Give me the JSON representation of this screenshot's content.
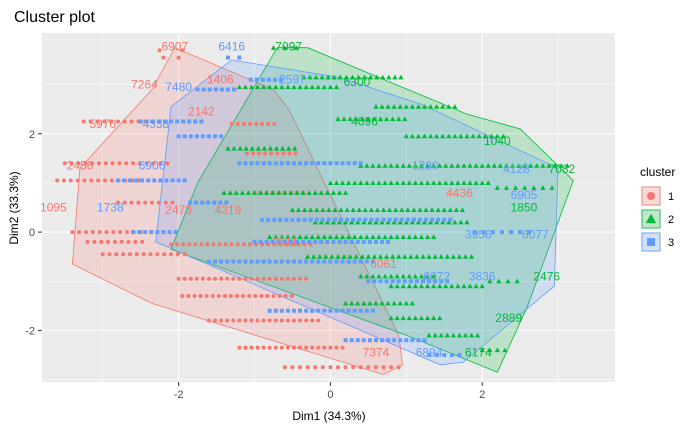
{
  "chart_data": {
    "type": "scatter",
    "title": "Cluster plot",
    "xlabel": "Dim1 (34.3%)",
    "ylabel": "Dim2 (33.3%)",
    "xlim": [
      -3.8,
      3.75
    ],
    "ylim": [
      -3.05,
      4.05
    ],
    "x_ticks": [
      -2,
      0,
      2
    ],
    "y_ticks": [
      -2,
      0,
      2
    ],
    "grid": true,
    "legend": {
      "title": "cluster",
      "position": "right",
      "entries": [
        "1",
        "2",
        "3"
      ]
    },
    "series": [
      {
        "name": "1",
        "color": "#F8766D",
        "marker": "circle",
        "hull": [
          [
            -3.3,
            1.3
          ],
          [
            -2.35,
            2.9
          ],
          [
            -2.05,
            3.75
          ],
          [
            -0.75,
            2.9
          ],
          [
            -0.55,
            2.5
          ],
          [
            0.9,
            -2.1
          ],
          [
            0.95,
            -2.7
          ],
          [
            0.7,
            -2.9
          ],
          [
            -2.35,
            -1.45
          ],
          [
            -3.4,
            -0.65
          ]
        ],
        "point_rows": [
          {
            "y": 3.7,
            "x0": -2.25,
            "x1": -1.85,
            "step": 0.3
          },
          {
            "y": 3.55,
            "x0": -2.2,
            "x1": -1.95,
            "step": 0.2
          },
          {
            "y": 2.25,
            "x0": -3.25,
            "x1": -2.3,
            "step": 0.09
          },
          {
            "y": 1.4,
            "x0": -3.5,
            "x1": -2.1,
            "step": 0.09
          },
          {
            "y": 1.05,
            "x0": -3.6,
            "x1": -2.5,
            "step": 0.09
          },
          {
            "y": 0.6,
            "x0": -2.8,
            "x1": -2.0,
            "step": 0.09
          },
          {
            "y": 0.0,
            "x0": -3.4,
            "x1": -2.5,
            "step": 0.09
          },
          {
            "y": -0.2,
            "x0": -3.2,
            "x1": -2.4,
            "step": 0.09
          },
          {
            "y": -0.25,
            "x0": -2.1,
            "x1": -0.2,
            "step": 0.08
          },
          {
            "y": -0.45,
            "x0": -3.0,
            "x1": -1.9,
            "step": 0.09
          },
          {
            "y": -0.95,
            "x0": -2.0,
            "x1": -0.3,
            "step": 0.08
          },
          {
            "y": -1.3,
            "x0": -1.95,
            "x1": -0.5,
            "step": 0.08
          },
          {
            "y": -1.8,
            "x0": -1.6,
            "x1": -0.1,
            "step": 0.08
          },
          {
            "y": -2.35,
            "x0": -1.2,
            "x1": 0.2,
            "step": 0.08
          },
          {
            "y": 2.2,
            "x0": -1.3,
            "x1": -0.7,
            "step": 0.08
          },
          {
            "y": 1.6,
            "x0": -1.1,
            "x1": -0.4,
            "step": 0.08
          },
          {
            "y": 0.8,
            "x0": -1.0,
            "x1": -0.3,
            "step": 0.08
          },
          {
            "y": -2.75,
            "x0": -0.6,
            "x1": 0.9,
            "step": 0.1
          }
        ]
      },
      {
        "name": "2",
        "color": "#00BA38",
        "marker": "triangle",
        "hull": [
          [
            -1.75,
            1.0
          ],
          [
            -0.7,
            3.75
          ],
          [
            -0.3,
            3.75
          ],
          [
            1.8,
            2.4
          ],
          [
            2.5,
            2.1
          ],
          [
            3.2,
            1.05
          ],
          [
            2.6,
            -1.5
          ],
          [
            2.2,
            -2.85
          ],
          [
            1.0,
            -2.1
          ],
          [
            -2.1,
            -0.35
          ]
        ],
        "point_rows": [
          {
            "y": 3.75,
            "x0": -0.75,
            "x1": -0.45,
            "step": 0.15
          },
          {
            "y": 3.15,
            "x0": -0.35,
            "x1": 0.95,
            "step": 0.08
          },
          {
            "y": 2.95,
            "x0": -1.2,
            "x1": 0.1,
            "step": 0.08
          },
          {
            "y": 2.55,
            "x0": 0.6,
            "x1": 1.7,
            "step": 0.08
          },
          {
            "y": 2.3,
            "x0": 0.1,
            "x1": 1.0,
            "step": 0.08
          },
          {
            "y": 1.95,
            "x0": 1.0,
            "x1": 2.3,
            "step": 0.08
          },
          {
            "y": 1.7,
            "x0": -1.35,
            "x1": -0.4,
            "step": 0.08
          },
          {
            "y": 1.35,
            "x0": 0.4,
            "x1": 3.15,
            "step": 0.08
          },
          {
            "y": 1.0,
            "x0": 0.0,
            "x1": 2.1,
            "step": 0.08
          },
          {
            "y": 0.8,
            "x0": -1.4,
            "x1": 0.2,
            "step": 0.08
          },
          {
            "y": 0.45,
            "x0": -0.5,
            "x1": 1.8,
            "step": 0.08
          },
          {
            "y": 0.2,
            "x0": -0.2,
            "x1": 1.85,
            "step": 0.08
          },
          {
            "y": -0.1,
            "x0": -0.8,
            "x1": 1.4,
            "step": 0.08
          },
          {
            "y": -0.5,
            "x0": -0.3,
            "x1": 1.9,
            "step": 0.08
          },
          {
            "y": -0.9,
            "x0": 0.4,
            "x1": 1.4,
            "step": 0.08
          },
          {
            "y": -1.1,
            "x0": 0.8,
            "x1": 2.0,
            "step": 0.08
          },
          {
            "y": -1.45,
            "x0": 0.2,
            "x1": 1.1,
            "step": 0.08
          },
          {
            "y": -1.75,
            "x0": 0.8,
            "x1": 1.5,
            "step": 0.08
          },
          {
            "y": -2.1,
            "x0": 1.3,
            "x1": 2.0,
            "step": 0.08
          },
          {
            "y": 0.9,
            "x0": 2.2,
            "x1": 3.0,
            "step": 0.12
          },
          {
            "y": -1.0,
            "x0": 2.1,
            "x1": 2.5,
            "step": 0.12
          },
          {
            "y": -2.4,
            "x0": 2.0,
            "x1": 2.3,
            "step": 0.1
          }
        ]
      },
      {
        "name": "3",
        "color": "#619CFF",
        "marker": "square",
        "hull": [
          [
            -2.1,
            2.55
          ],
          [
            -1.3,
            3.5
          ],
          [
            0.1,
            3.15
          ],
          [
            1.2,
            2.6
          ],
          [
            3.0,
            1.3
          ],
          [
            2.95,
            -1.1
          ],
          [
            1.75,
            -2.65
          ],
          [
            1.45,
            -2.7
          ],
          [
            -2.3,
            -0.2
          ]
        ],
        "point_rows": [
          {
            "y": 3.55,
            "x0": -1.35,
            "x1": -1.2,
            "step": 0.15
          },
          {
            "y": 3.1,
            "x0": -1.05,
            "x1": -0.6,
            "step": 0.08
          },
          {
            "y": 2.9,
            "x0": -1.75,
            "x1": -1.2,
            "step": 0.08
          },
          {
            "y": 2.25,
            "x0": -2.5,
            "x1": -1.7,
            "step": 0.08
          },
          {
            "y": 1.95,
            "x0": -2.0,
            "x1": -1.4,
            "step": 0.08
          },
          {
            "y": 1.4,
            "x0": -1.2,
            "x1": 0.4,
            "step": 0.08
          },
          {
            "y": 1.05,
            "x0": -2.8,
            "x1": -1.9,
            "step": 0.08
          },
          {
            "y": 0.6,
            "x0": -1.85,
            "x1": -1.3,
            "step": 0.08
          },
          {
            "y": 0.25,
            "x0": -0.9,
            "x1": 1.6,
            "step": 0.08
          },
          {
            "y": 0.0,
            "x0": -2.6,
            "x1": -2.0,
            "step": 0.08
          },
          {
            "y": -0.2,
            "x0": -1.0,
            "x1": 0.8,
            "step": 0.08
          },
          {
            "y": -0.6,
            "x0": -1.6,
            "x1": 0.6,
            "step": 0.08
          },
          {
            "y": -1.0,
            "x0": 0.5,
            "x1": 1.6,
            "step": 0.08
          },
          {
            "y": -1.6,
            "x0": -0.8,
            "x1": 0.6,
            "step": 0.08
          },
          {
            "y": -2.2,
            "x0": 0.2,
            "x1": 1.3,
            "step": 0.08
          },
          {
            "y": 0.0,
            "x0": 1.9,
            "x1": 2.7,
            "step": 0.12
          },
          {
            "y": -2.5,
            "x0": 1.3,
            "x1": 1.7,
            "step": 0.1
          }
        ]
      }
    ],
    "point_labels": [
      {
        "cluster": "1",
        "text": "6907",
        "x": -2.05,
        "y": 3.78
      },
      {
        "cluster": "3",
        "text": "6416",
        "x": -1.3,
        "y": 3.78
      },
      {
        "cluster": "2",
        "text": "7097",
        "x": -0.55,
        "y": 3.78
      },
      {
        "cluster": "1",
        "text": "7264",
        "x": -2.45,
        "y": 3.0
      },
      {
        "cluster": "3",
        "text": "7480",
        "x": -2.0,
        "y": 2.95
      },
      {
        "cluster": "1",
        "text": "1406",
        "x": -1.45,
        "y": 3.1
      },
      {
        "cluster": "3",
        "text": "2597",
        "x": -0.5,
        "y": 3.1
      },
      {
        "cluster": "2",
        "text": "6300",
        "x": 0.35,
        "y": 3.05
      },
      {
        "cluster": "1",
        "text": "5970",
        "x": -3.0,
        "y": 2.2
      },
      {
        "cluster": "3",
        "text": "4338",
        "x": -2.3,
        "y": 2.2
      },
      {
        "cluster": "1",
        "text": "2142",
        "x": -1.7,
        "y": 2.45
      },
      {
        "cluster": "2",
        "text": "4096",
        "x": 0.45,
        "y": 2.25
      },
      {
        "cluster": "2",
        "text": "1040",
        "x": 2.2,
        "y": 1.85
      },
      {
        "cluster": "1",
        "text": "2456",
        "x": -3.3,
        "y": 1.35
      },
      {
        "cluster": "3",
        "text": "6906",
        "x": -2.35,
        "y": 1.35
      },
      {
        "cluster": "1",
        "text": "2473",
        "x": -2.0,
        "y": 0.45
      },
      {
        "cluster": "2",
        "text": "7082",
        "x": 3.05,
        "y": 1.28
      },
      {
        "cluster": "3",
        "text": "4128",
        "x": 2.45,
        "y": 1.28
      },
      {
        "cluster": "3",
        "text": "1290",
        "x": 1.25,
        "y": 1.35
      },
      {
        "cluster": "1",
        "text": "4436",
        "x": 1.7,
        "y": 0.8
      },
      {
        "cluster": "3",
        "text": "6905",
        "x": 2.55,
        "y": 0.75
      },
      {
        "cluster": "2",
        "text": "1850",
        "x": 2.55,
        "y": 0.5
      },
      {
        "cluster": "1",
        "text": "1095",
        "x": -3.65,
        "y": 0.5
      },
      {
        "cluster": "3",
        "text": "1738",
        "x": -2.9,
        "y": 0.5
      },
      {
        "cluster": "1",
        "text": "4319",
        "x": -1.35,
        "y": 0.45
      },
      {
        "cluster": "3",
        "text": "3956",
        "x": 1.95,
        "y": -0.05
      },
      {
        "cluster": "3",
        "text": "6077",
        "x": 2.7,
        "y": -0.05
      },
      {
        "cluster": "1",
        "text": "2511",
        "x": -0.6,
        "y": -0.2
      },
      {
        "cluster": "1",
        "text": "6061",
        "x": 0.7,
        "y": -0.65
      },
      {
        "cluster": "3",
        "text": "6072",
        "x": 1.4,
        "y": -0.9
      },
      {
        "cluster": "3",
        "text": "3836",
        "x": 2.0,
        "y": -0.9
      },
      {
        "cluster": "2",
        "text": "2476",
        "x": 2.85,
        "y": -0.9
      },
      {
        "cluster": "2",
        "text": "2889",
        "x": 2.35,
        "y": -1.75
      },
      {
        "cluster": "1",
        "text": "7374",
        "x": 0.6,
        "y": -2.45
      },
      {
        "cluster": "3",
        "text": "6894",
        "x": 1.3,
        "y": -2.45
      },
      {
        "cluster": "2",
        "text": "6174",
        "x": 1.95,
        "y": -2.45
      }
    ]
  }
}
